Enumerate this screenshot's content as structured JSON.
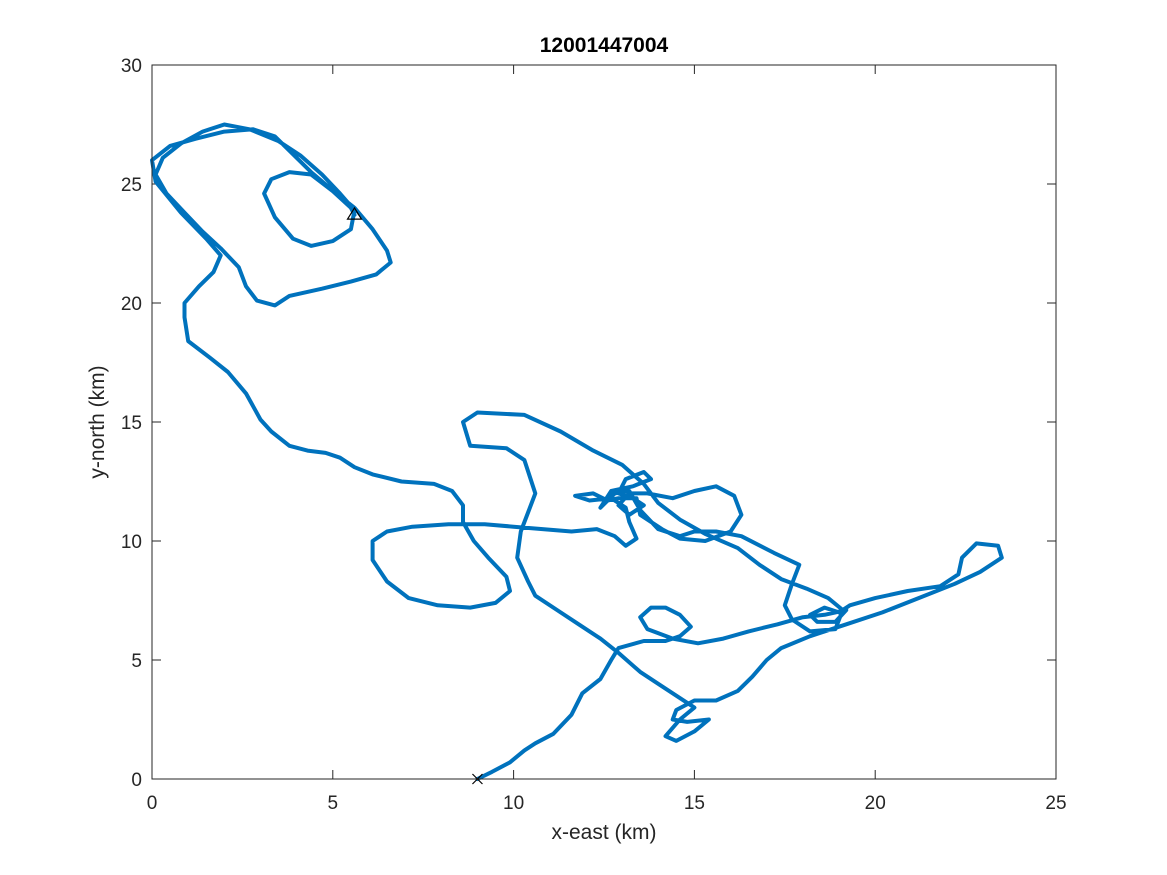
{
  "chart_data": {
    "type": "line",
    "title": "12001447004",
    "xlabel": "x-east (km)",
    "ylabel": "y-north (km)",
    "xlim": [
      0,
      25
    ],
    "ylim": [
      0,
      30
    ],
    "xticks": [
      0,
      5,
      10,
      15,
      20,
      25
    ],
    "yticks": [
      0,
      5,
      10,
      15,
      20,
      25,
      30
    ],
    "xtick_labels": [
      "0",
      "5",
      "10",
      "15",
      "20",
      "25"
    ],
    "ytick_labels": [
      "0",
      "5",
      "10",
      "15",
      "20",
      "25",
      "30"
    ],
    "grid": false,
    "box": true,
    "line_color": "#0072BD",
    "start_marker": {
      "symbol": "x",
      "x": 9.0,
      "y": 0.0
    },
    "end_marker": {
      "symbol": "triangle",
      "x": 5.6,
      "y": 23.7
    },
    "track": [
      [
        9.0,
        0.0
      ],
      [
        9.4,
        0.3
      ],
      [
        9.9,
        0.7
      ],
      [
        10.3,
        1.2
      ],
      [
        10.6,
        1.5
      ],
      [
        11.1,
        1.9
      ],
      [
        11.6,
        2.7
      ],
      [
        11.9,
        3.6
      ],
      [
        12.4,
        4.2
      ],
      [
        12.7,
        5.0
      ],
      [
        12.9,
        5.5
      ],
      [
        13.6,
        5.8
      ],
      [
        14.2,
        5.8
      ],
      [
        14.6,
        6.0
      ],
      [
        14.9,
        6.4
      ],
      [
        14.6,
        6.9
      ],
      [
        14.2,
        7.2
      ],
      [
        13.8,
        7.2
      ],
      [
        13.5,
        6.8
      ],
      [
        13.7,
        6.3
      ],
      [
        14.4,
        5.9
      ],
      [
        15.1,
        5.7
      ],
      [
        15.8,
        5.9
      ],
      [
        16.5,
        6.2
      ],
      [
        17.3,
        6.5
      ],
      [
        18.0,
        6.8
      ],
      [
        18.6,
        6.9
      ],
      [
        19.2,
        7.1
      ],
      [
        18.9,
        6.6
      ],
      [
        18.4,
        6.6
      ],
      [
        18.2,
        6.9
      ],
      [
        18.6,
        7.2
      ],
      [
        19.0,
        7.0
      ],
      [
        19.3,
        7.3
      ],
      [
        20.0,
        7.6
      ],
      [
        20.9,
        7.9
      ],
      [
        21.8,
        8.1
      ],
      [
        22.3,
        8.6
      ],
      [
        22.4,
        9.3
      ],
      [
        22.8,
        9.9
      ],
      [
        23.4,
        9.8
      ],
      [
        23.5,
        9.3
      ],
      [
        22.9,
        8.7
      ],
      [
        22.2,
        8.2
      ],
      [
        21.2,
        7.6
      ],
      [
        20.2,
        7.0
      ],
      [
        19.2,
        6.5
      ],
      [
        18.2,
        6.0
      ],
      [
        17.4,
        5.5
      ],
      [
        17.0,
        5.0
      ],
      [
        16.6,
        4.3
      ],
      [
        16.2,
        3.7
      ],
      [
        15.6,
        3.3
      ],
      [
        15.0,
        3.3
      ],
      [
        14.5,
        2.9
      ],
      [
        14.4,
        2.5
      ],
      [
        14.8,
        2.4
      ],
      [
        15.4,
        2.5
      ],
      [
        15.0,
        2.0
      ],
      [
        14.5,
        1.6
      ],
      [
        14.2,
        1.8
      ],
      [
        14.6,
        2.5
      ],
      [
        15.0,
        3.0
      ],
      [
        14.5,
        3.5
      ],
      [
        14.0,
        4.0
      ],
      [
        13.5,
        4.5
      ],
      [
        12.9,
        5.3
      ],
      [
        12.4,
        5.9
      ],
      [
        11.8,
        6.5
      ],
      [
        11.2,
        7.1
      ],
      [
        10.6,
        7.7
      ],
      [
        10.4,
        8.3
      ],
      [
        10.1,
        9.3
      ],
      [
        10.2,
        10.4
      ],
      [
        10.4,
        11.2
      ],
      [
        10.6,
        12.0
      ],
      [
        10.3,
        13.4
      ],
      [
        9.8,
        13.9
      ],
      [
        8.8,
        14.0
      ],
      [
        8.6,
        15.0
      ],
      [
        9.0,
        15.4
      ],
      [
        10.3,
        15.3
      ],
      [
        11.3,
        14.6
      ],
      [
        12.2,
        13.8
      ],
      [
        13.0,
        13.2
      ],
      [
        13.6,
        12.4
      ],
      [
        14.0,
        11.6
      ],
      [
        14.6,
        10.9
      ],
      [
        15.3,
        10.3
      ],
      [
        16.2,
        9.7
      ],
      [
        16.8,
        9.0
      ],
      [
        17.4,
        8.4
      ],
      [
        18.1,
        8.0
      ],
      [
        18.7,
        7.6
      ],
      [
        19.1,
        7.1
      ],
      [
        18.9,
        6.3
      ],
      [
        18.2,
        6.2
      ],
      [
        17.7,
        6.7
      ],
      [
        17.5,
        7.3
      ],
      [
        17.7,
        8.2
      ],
      [
        17.9,
        9.0
      ],
      [
        17.2,
        9.5
      ],
      [
        16.3,
        10.2
      ],
      [
        15.6,
        10.4
      ],
      [
        15.0,
        10.4
      ],
      [
        14.6,
        10.2
      ],
      [
        14.0,
        10.5
      ],
      [
        13.5,
        11.3
      ],
      [
        13.2,
        12.1
      ],
      [
        12.8,
        12.0
      ],
      [
        12.4,
        11.4
      ],
      [
        12.7,
        12.1
      ],
      [
        13.3,
        12.3
      ],
      [
        13.8,
        12.6
      ],
      [
        13.6,
        12.9
      ],
      [
        13.1,
        12.6
      ],
      [
        12.9,
        12.0
      ],
      [
        13.3,
        11.8
      ],
      [
        13.6,
        11.5
      ],
      [
        13.2,
        11.1
      ],
      [
        12.9,
        11.5
      ],
      [
        13.2,
        12.0
      ],
      [
        13.7,
        12.0
      ],
      [
        14.4,
        11.8
      ],
      [
        15.0,
        12.1
      ],
      [
        15.6,
        12.3
      ],
      [
        16.1,
        11.9
      ],
      [
        16.3,
        11.1
      ],
      [
        16.0,
        10.4
      ],
      [
        15.3,
        10.0
      ],
      [
        14.6,
        10.1
      ],
      [
        14.1,
        10.5
      ],
      [
        13.5,
        11.1
      ],
      [
        13.4,
        11.8
      ],
      [
        12.9,
        11.8
      ],
      [
        12.6,
        11.7
      ],
      [
        12.2,
        12.0
      ],
      [
        11.7,
        11.9
      ],
      [
        12.1,
        11.7
      ],
      [
        12.7,
        11.8
      ],
      [
        13.1,
        11.4
      ],
      [
        13.2,
        10.8
      ],
      [
        13.4,
        10.1
      ],
      [
        13.1,
        9.8
      ],
      [
        12.8,
        10.2
      ],
      [
        12.3,
        10.5
      ],
      [
        11.6,
        10.4
      ],
      [
        10.8,
        10.5
      ],
      [
        10.0,
        10.6
      ],
      [
        9.2,
        10.7
      ],
      [
        8.2,
        10.7
      ],
      [
        7.2,
        10.6
      ],
      [
        6.5,
        10.4
      ],
      [
        6.1,
        10.0
      ],
      [
        6.1,
        9.2
      ],
      [
        6.5,
        8.3
      ],
      [
        7.1,
        7.6
      ],
      [
        7.9,
        7.3
      ],
      [
        8.8,
        7.2
      ],
      [
        9.5,
        7.4
      ],
      [
        9.9,
        7.9
      ],
      [
        9.8,
        8.5
      ],
      [
        9.3,
        9.3
      ],
      [
        8.9,
        10.0
      ],
      [
        8.6,
        10.8
      ],
      [
        8.6,
        11.5
      ],
      [
        8.3,
        12.1
      ],
      [
        7.8,
        12.4
      ],
      [
        6.9,
        12.5
      ],
      [
        6.1,
        12.8
      ],
      [
        5.6,
        13.1
      ],
      [
        5.2,
        13.5
      ],
      [
        4.8,
        13.7
      ],
      [
        4.3,
        13.8
      ],
      [
        3.8,
        14.0
      ],
      [
        3.3,
        14.6
      ],
      [
        3.0,
        15.1
      ],
      [
        2.6,
        16.2
      ],
      [
        2.1,
        17.1
      ],
      [
        1.6,
        17.7
      ],
      [
        1.0,
        18.4
      ],
      [
        0.9,
        19.4
      ],
      [
        0.9,
        20.0
      ],
      [
        1.3,
        20.7
      ],
      [
        1.7,
        21.3
      ],
      [
        1.9,
        22.0
      ],
      [
        1.5,
        22.7
      ],
      [
        0.8,
        23.8
      ],
      [
        0.1,
        25.1
      ],
      [
        0.0,
        26.0
      ],
      [
        0.5,
        26.6
      ],
      [
        1.2,
        26.9
      ],
      [
        2.0,
        27.2
      ],
      [
        2.8,
        27.3
      ],
      [
        3.4,
        27.0
      ],
      [
        3.8,
        26.4
      ],
      [
        4.4,
        25.5
      ],
      [
        5.1,
        24.6
      ],
      [
        5.6,
        24.0
      ],
      [
        6.1,
        23.1
      ],
      [
        6.5,
        22.2
      ],
      [
        6.6,
        21.7
      ],
      [
        6.2,
        21.2
      ],
      [
        5.5,
        20.9
      ],
      [
        4.7,
        20.6
      ],
      [
        3.8,
        20.3
      ],
      [
        3.4,
        19.9
      ],
      [
        2.9,
        20.1
      ],
      [
        2.6,
        20.7
      ],
      [
        2.4,
        21.5
      ],
      [
        1.9,
        22.3
      ],
      [
        1.4,
        23.0
      ],
      [
        0.9,
        23.8
      ],
      [
        0.4,
        24.6
      ],
      [
        0.1,
        25.4
      ],
      [
        0.3,
        26.1
      ],
      [
        0.8,
        26.7
      ],
      [
        1.4,
        27.2
      ],
      [
        2.0,
        27.5
      ],
      [
        2.7,
        27.3
      ],
      [
        3.5,
        26.8
      ],
      [
        4.1,
        26.2
      ],
      [
        4.7,
        25.4
      ],
      [
        5.2,
        24.6
      ],
      [
        5.6,
        23.9
      ],
      [
        5.5,
        23.1
      ],
      [
        5.0,
        22.6
      ],
      [
        4.4,
        22.4
      ],
      [
        3.9,
        22.7
      ],
      [
        3.4,
        23.6
      ],
      [
        3.1,
        24.6
      ],
      [
        3.3,
        25.2
      ],
      [
        3.8,
        25.5
      ],
      [
        4.4,
        25.4
      ],
      [
        5.0,
        24.7
      ],
      [
        5.5,
        24.0
      ],
      [
        5.6,
        23.7
      ]
    ]
  }
}
